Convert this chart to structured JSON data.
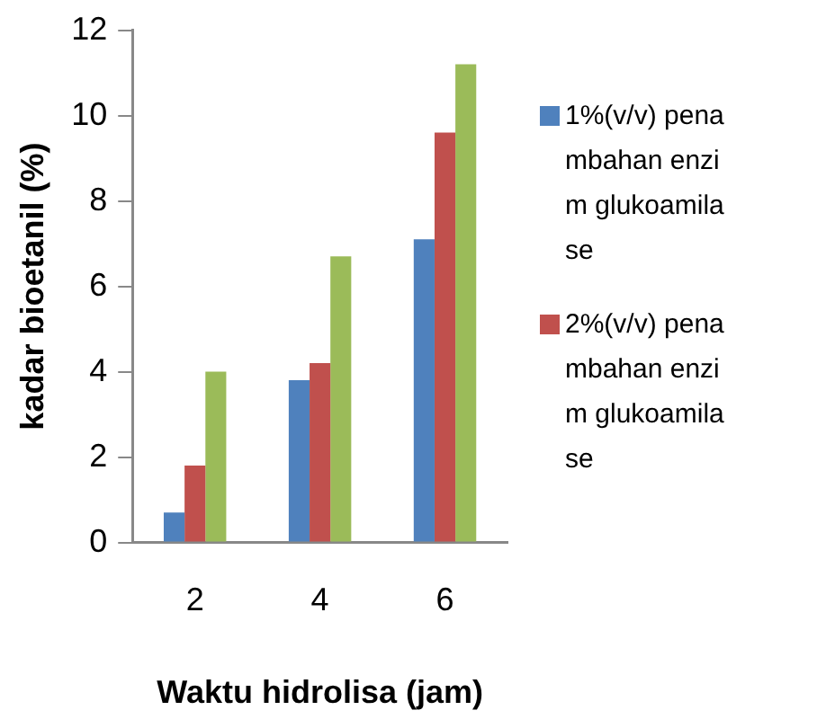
{
  "chart_data": {
    "type": "bar",
    "xlabel": "Waktu hidrolisa (jam)",
    "ylabel": "kadar bioetanil (%)",
    "categories": [
      "2",
      "4",
      "6"
    ],
    "series": [
      {
        "name": "1%(v/v) penambahan enzim glukoamilase",
        "color": "#4f81bd",
        "values": [
          0.7,
          3.8,
          7.1
        ]
      },
      {
        "name": "2%(v/v) penambahan enzim glukoamilase",
        "color": "#c0504d",
        "values": [
          1.8,
          4.2,
          9.6
        ]
      },
      {
        "color": "#9bbb59",
        "values": [
          4.0,
          6.7,
          11.2
        ]
      }
    ],
    "ylim": [
      0,
      12
    ],
    "yticks": [
      0,
      2,
      4,
      6,
      8,
      10,
      12
    ],
    "grid": false,
    "legend": "right"
  }
}
